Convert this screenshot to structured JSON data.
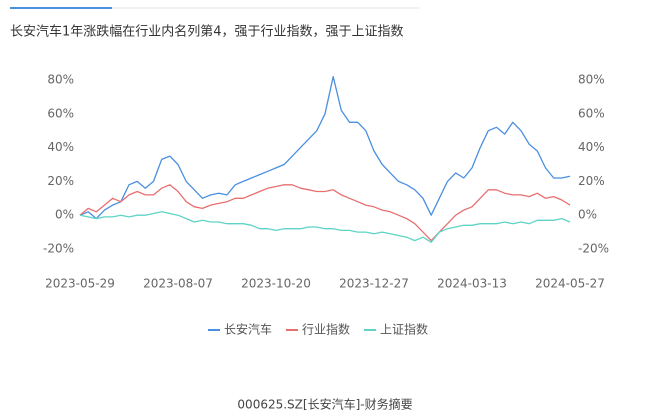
{
  "chart_data": {
    "type": "line",
    "title": "长安汽车1年涨跌幅在行业内名列第4，强于行业指数，强于上证指数",
    "footer": "000625.SZ[长安汽车]-财务摘要",
    "categories": [
      "2023-05-29",
      null,
      null,
      null,
      null,
      null,
      null,
      null,
      null,
      null,
      null,
      null,
      "2023-08-07",
      null,
      null,
      null,
      null,
      null,
      null,
      null,
      null,
      null,
      null,
      null,
      "2023-10-20",
      null,
      null,
      null,
      null,
      null,
      null,
      null,
      null,
      null,
      null,
      null,
      "2023-12-27",
      null,
      null,
      null,
      null,
      null,
      null,
      null,
      null,
      null,
      null,
      null,
      "2024-03-13",
      null,
      null,
      null,
      null,
      null,
      null,
      null,
      null,
      null,
      null,
      null,
      "2024-05-27"
    ],
    "series": [
      {
        "name": "长安汽车",
        "color": "#4a8fe0",
        "values": [
          0,
          2,
          -2,
          3,
          6,
          8,
          18,
          20,
          16,
          20,
          33,
          35,
          30,
          20,
          15,
          10,
          12,
          13,
          12,
          18,
          20,
          22,
          24,
          26,
          28,
          30,
          35,
          40,
          45,
          50,
          60,
          82,
          62,
          55,
          55,
          50,
          38,
          30,
          25,
          20,
          18,
          15,
          10,
          0,
          10,
          20,
          25,
          22,
          28,
          40,
          50,
          52,
          48,
          55,
          50,
          42,
          38,
          28,
          22,
          22,
          23
        ]
      },
      {
        "name": "行业指数",
        "color": "#e86f6f",
        "values": [
          0,
          4,
          2,
          6,
          10,
          8,
          12,
          14,
          12,
          12,
          16,
          18,
          14,
          8,
          5,
          4,
          6,
          7,
          8,
          10,
          10,
          12,
          14,
          16,
          17,
          18,
          18,
          16,
          15,
          14,
          14,
          15,
          12,
          10,
          8,
          6,
          5,
          3,
          2,
          0,
          -2,
          -5,
          -10,
          -15,
          -10,
          -5,
          0,
          3,
          5,
          10,
          15,
          15,
          13,
          12,
          12,
          11,
          13,
          10,
          11,
          9,
          6
        ]
      },
      {
        "name": "上证指数",
        "color": "#5ed3c6",
        "values": [
          0,
          -1,
          -2,
          -1,
          -1,
          0,
          -1,
          0,
          0,
          1,
          2,
          1,
          0,
          -2,
          -4,
          -3,
          -4,
          -4,
          -5,
          -5,
          -5,
          -6,
          -8,
          -8,
          -9,
          -8,
          -8,
          -8,
          -7,
          -7,
          -8,
          -8,
          -9,
          -9,
          -10,
          -10,
          -11,
          -10,
          -11,
          -12,
          -13,
          -15,
          -13,
          -16,
          -10,
          -8,
          -7,
          -6,
          -6,
          -5,
          -5,
          -5,
          -4,
          -5,
          -4,
          -5,
          -3,
          -3,
          -3,
          -2,
          -4
        ]
      }
    ],
    "ylim": [
      -20,
      80
    ],
    "yticks": [
      {
        "value": -20,
        "label": "-20%"
      },
      {
        "value": 0,
        "label": "0%"
      },
      {
        "value": 20,
        "label": "20%"
      },
      {
        "value": 40,
        "label": "40%"
      },
      {
        "value": 60,
        "label": "60%"
      },
      {
        "value": 80,
        "label": "80%"
      }
    ],
    "y2lim": [
      -20,
      80
    ],
    "y2ticks": [
      {
        "value": -20,
        "label": "-20%"
      },
      {
        "value": 0,
        "label": "0%"
      },
      {
        "value": 20,
        "label": "20%"
      },
      {
        "value": 40,
        "label": "40%"
      },
      {
        "value": 60,
        "label": "60%"
      },
      {
        "value": 80,
        "label": "80%"
      }
    ],
    "grid": false,
    "legend": "bottom"
  }
}
